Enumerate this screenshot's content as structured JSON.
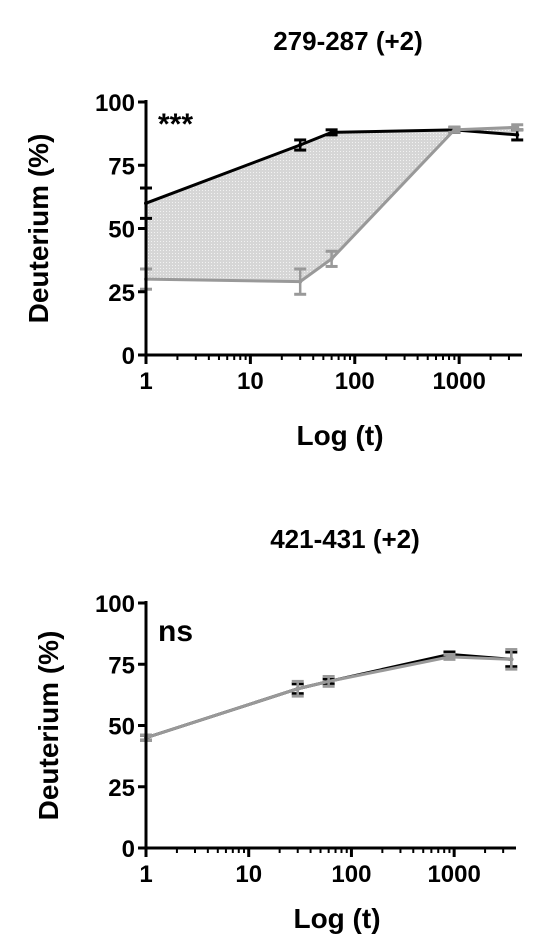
{
  "chart_data": [
    {
      "type": "line",
      "title": "279-287 (+2)",
      "xlabel": "Log (t)",
      "ylabel": "Deuterium (%)",
      "x_scale": "log",
      "xlim": [
        1,
        4000
      ],
      "ylim": [
        0,
        100
      ],
      "x_ticks": [
        1,
        10,
        100,
        1000
      ],
      "x_tick_labels": [
        "1",
        "10",
        "100",
        "1000"
      ],
      "y_ticks": [
        0,
        25,
        50,
        75,
        100
      ],
      "y_tick_labels": [
        "0",
        "25",
        "50",
        "75",
        "100"
      ],
      "annotation": "***",
      "shaded_difference": true,
      "series": [
        {
          "color": "#000000",
          "x": [
            1,
            30,
            60,
            900,
            3600
          ],
          "y": [
            60,
            83,
            88,
            89,
            87
          ],
          "err": [
            6,
            2,
            1,
            1,
            2
          ]
        },
        {
          "color": "#999999",
          "x": [
            1,
            30,
            60,
            900,
            3600
          ],
          "y": [
            30,
            29,
            38,
            89,
            90
          ],
          "err": [
            4,
            5,
            3,
            1,
            1
          ]
        }
      ]
    },
    {
      "type": "line",
      "title": "421-431 (+2)",
      "xlabel": "Log (t)",
      "ylabel": "Deuterium (%)",
      "x_scale": "log",
      "xlim": [
        1,
        4000
      ],
      "ylim": [
        0,
        100
      ],
      "x_ticks": [
        1,
        10,
        100,
        1000
      ],
      "x_tick_labels": [
        "1",
        "10",
        "100",
        "1000"
      ],
      "y_ticks": [
        0,
        25,
        50,
        75,
        100
      ],
      "y_tick_labels": [
        "0",
        "25",
        "50",
        "75",
        "100"
      ],
      "annotation": "ns",
      "shaded_difference": false,
      "series": [
        {
          "color": "#000000",
          "x": [
            1,
            30,
            60,
            900,
            3600
          ],
          "y": [
            45,
            65,
            68,
            79,
            77
          ],
          "err": [
            1,
            2,
            1,
            1,
            3
          ]
        },
        {
          "color": "#999999",
          "x": [
            1,
            30,
            60,
            900,
            3600
          ],
          "y": [
            45,
            65,
            68,
            78,
            77
          ],
          "err": [
            1,
            3,
            2,
            1,
            4
          ]
        }
      ]
    }
  ]
}
